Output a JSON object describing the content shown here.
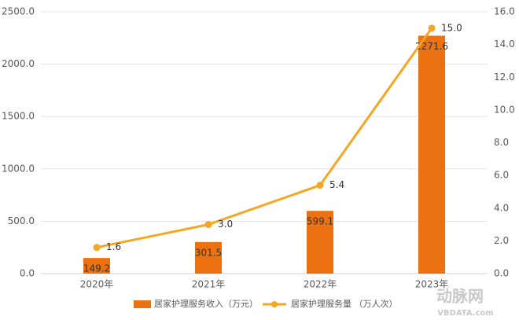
{
  "chart_data": {
    "type": "combo",
    "categories": [
      "2020年",
      "2021年",
      "2022年",
      "2023年"
    ],
    "series": [
      {
        "name": "居家护理服务收入（万元）",
        "type": "bar",
        "color": "#ec7211",
        "values": [
          149.2,
          301.5,
          599.1,
          2271.6
        ]
      },
      {
        "name": "居家护理服务量 （万人次）",
        "type": "line",
        "axis": "y2",
        "color": "#f5a623",
        "values": [
          1.6,
          3.0,
          5.4,
          15.0
        ],
        "value_labels": [
          "1.6",
          "3.0",
          "5.4",
          "15.0"
        ]
      }
    ],
    "ylim": [
      0,
      2500
    ],
    "yticks": [
      {
        "value": 0,
        "label": "0.0"
      },
      {
        "value": 500,
        "label": "500.0"
      },
      {
        "value": 1000,
        "label": "1000.0"
      },
      {
        "value": 1500,
        "label": "1500.0"
      },
      {
        "value": 2000,
        "label": "2000.0"
      },
      {
        "value": 2500,
        "label": "2500.0"
      }
    ],
    "y2lim": [
      0,
      16
    ],
    "y2ticks": [
      {
        "value": 0,
        "label": "0.0"
      },
      {
        "value": 2,
        "label": "2.0"
      },
      {
        "value": 4,
        "label": "4.0"
      },
      {
        "value": 6,
        "label": "6.0"
      },
      {
        "value": 8,
        "label": "8.0"
      },
      {
        "value": 10,
        "label": "10.0"
      },
      {
        "value": 12,
        "label": "12.0"
      },
      {
        "value": 14,
        "label": "14.0"
      },
      {
        "value": 16,
        "label": "16.0"
      }
    ],
    "grid": true,
    "legend": "bottom",
    "watermark": [
      "动脉网",
      "VBDATA.com"
    ]
  }
}
